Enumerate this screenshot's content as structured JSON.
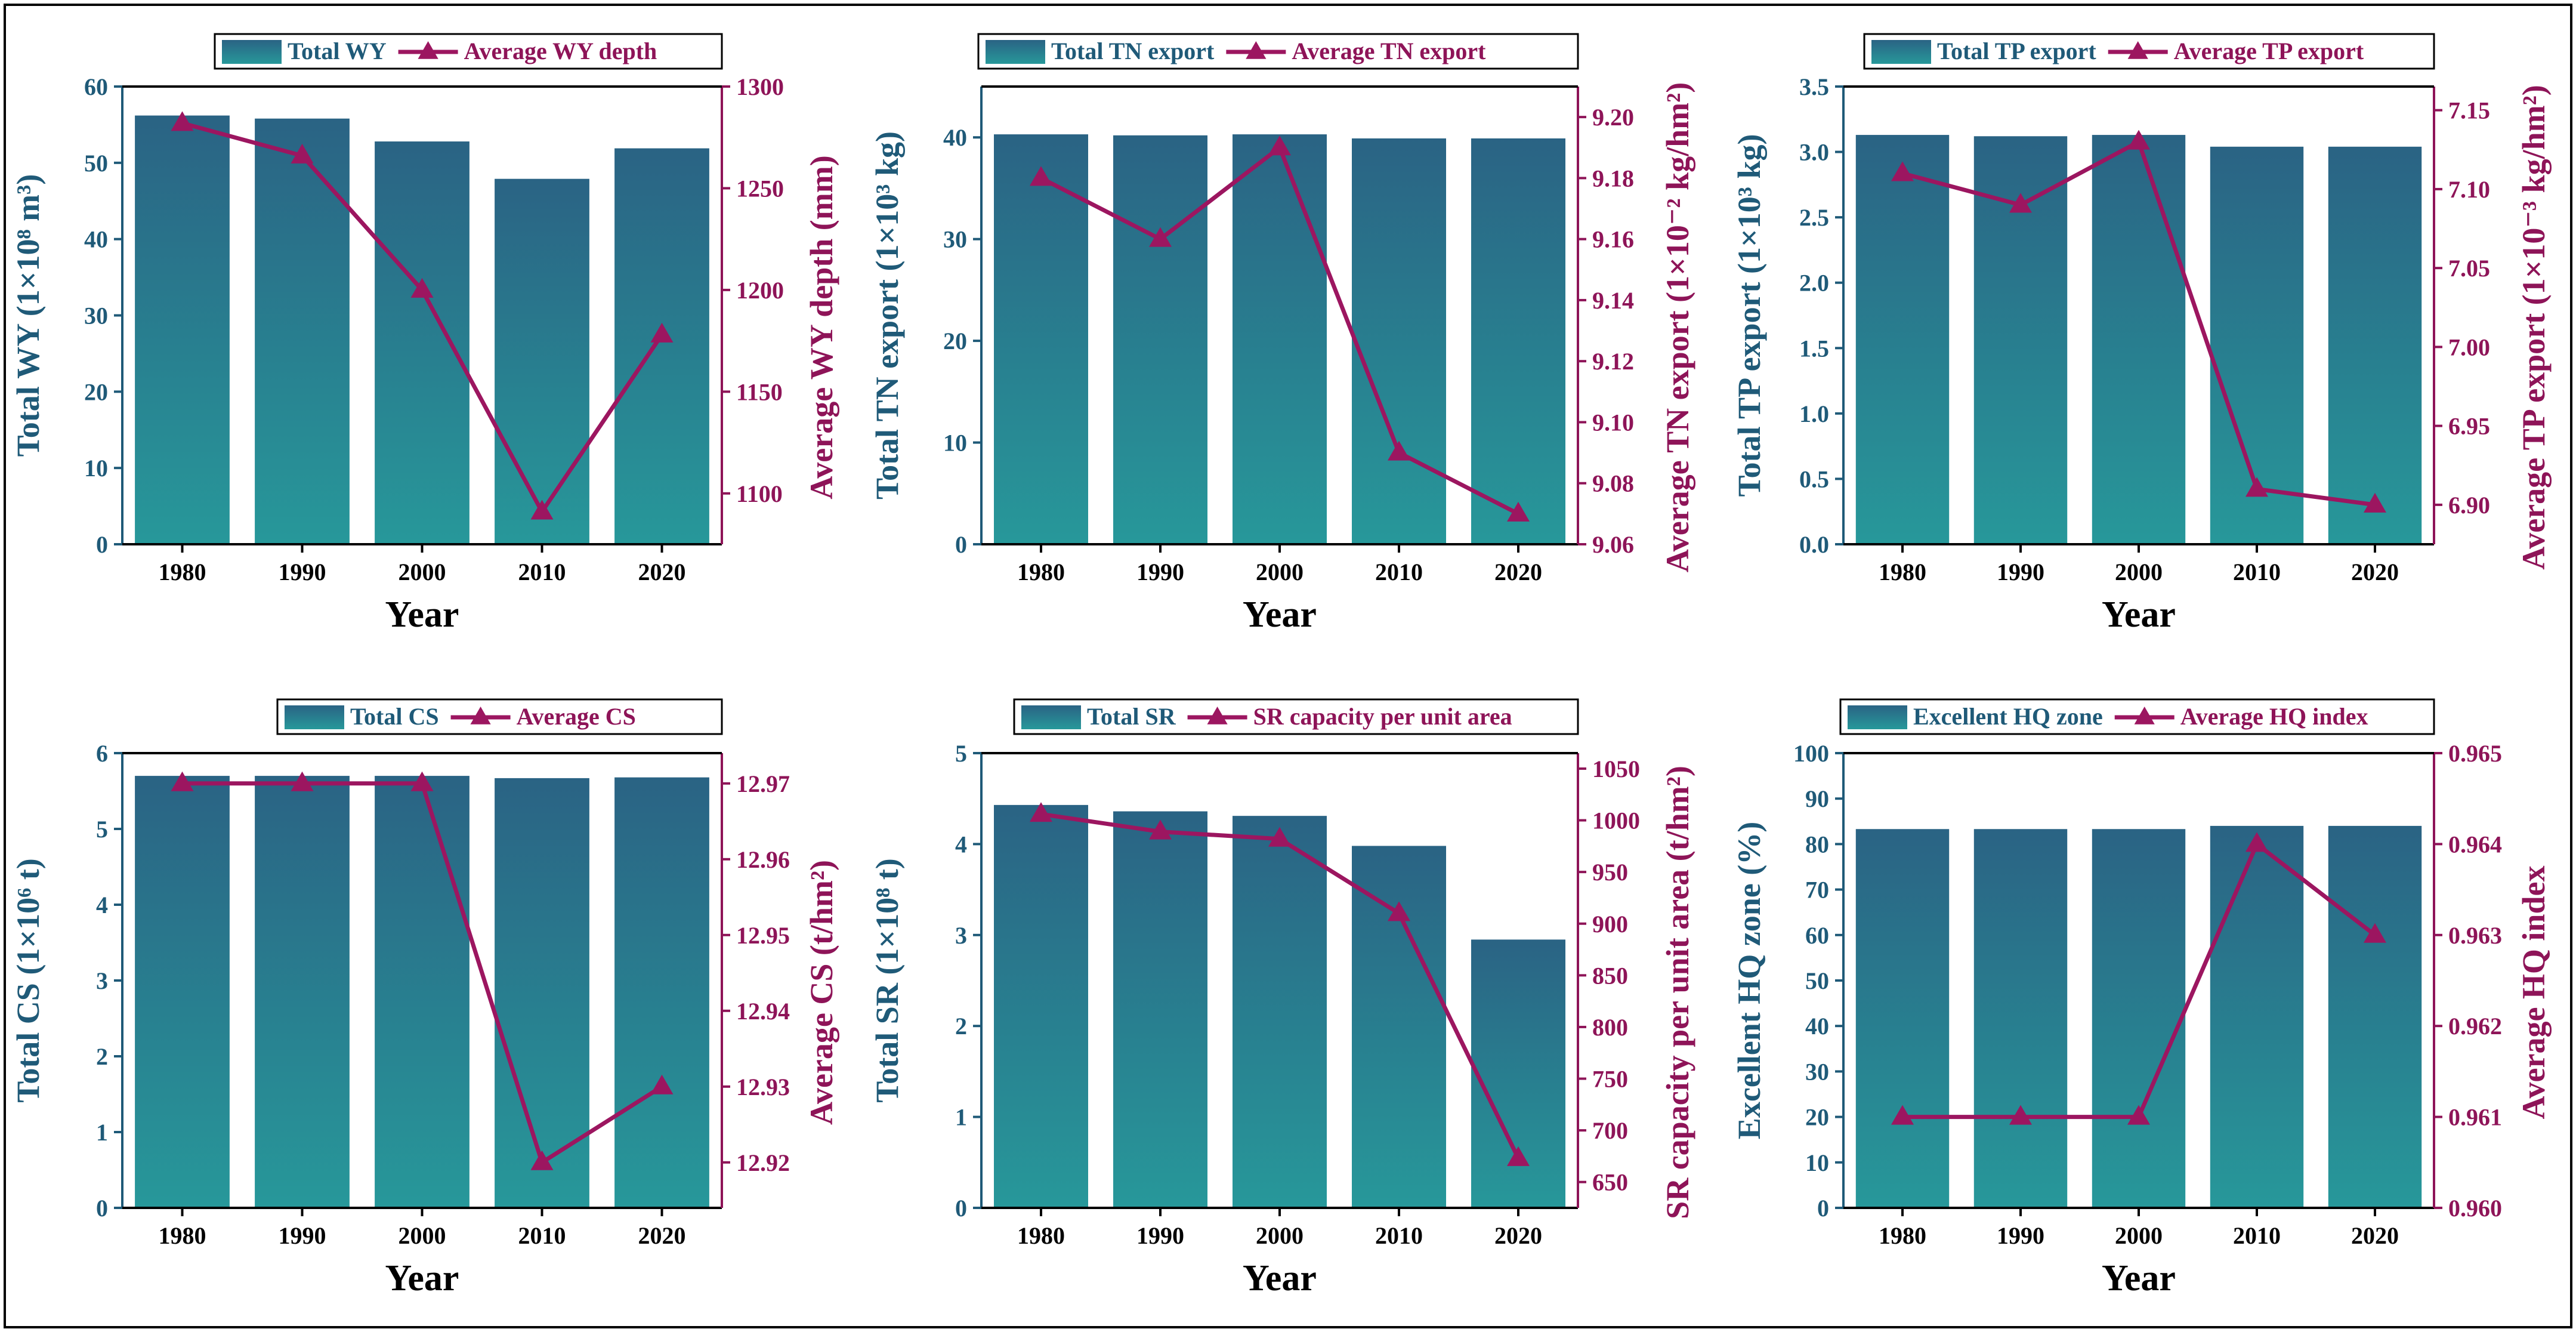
{
  "figure": {
    "frame_color": "#000000"
  },
  "colors": {
    "bar_top": "#2a6384",
    "bar_bottom": "#27989a",
    "left_axis": "#1f5a78",
    "right_axis": "#8e1458",
    "line": "#9c1660",
    "text": "#000000"
  },
  "chart_data": [
    {
      "type": "bar+line",
      "title": "",
      "categories": [
        "1980",
        "1990",
        "2000",
        "2010",
        "2020"
      ],
      "xlabel": "Year",
      "series": [
        {
          "name": "Total WY",
          "kind": "bar",
          "axis": "left",
          "values": [
            56.2,
            55.8,
            52.8,
            47.9,
            51.9
          ]
        },
        {
          "name": "Average WY depth",
          "kind": "line",
          "axis": "right",
          "values": [
            1282,
            1266,
            1200,
            1091,
            1178
          ]
        }
      ],
      "ylabel_left": "Total WY (1×10⁸ m³)",
      "ylim_left": [
        0,
        60
      ],
      "yticks_left": [
        "0",
        "10",
        "20",
        "30",
        "40",
        "50",
        "60"
      ],
      "ylabel_right": "Average WY depth (mm)",
      "ylim_right": [
        1075,
        1300
      ],
      "yticks_right": [
        "1100",
        "1150",
        "1200",
        "1250",
        "1300"
      ],
      "yticks_right_values": [
        1100,
        1150,
        1200,
        1250,
        1300
      ]
    },
    {
      "type": "bar+line",
      "title": "",
      "categories": [
        "1980",
        "1990",
        "2000",
        "2010",
        "2020"
      ],
      "xlabel": "Year",
      "series": [
        {
          "name": "Total TN export",
          "kind": "bar",
          "axis": "left",
          "values": [
            40.3,
            40.2,
            40.3,
            39.9,
            39.9
          ]
        },
        {
          "name": "Average TN export",
          "kind": "line",
          "axis": "right",
          "values": [
            9.18,
            9.16,
            9.19,
            9.09,
            9.07
          ]
        }
      ],
      "ylabel_left": "Total TN export (1×10³ kg)",
      "ylim_left": [
        0,
        45
      ],
      "yticks_left": [
        "0",
        "10",
        "20",
        "30",
        "40"
      ],
      "ylabel_right": "Average TN export (1×10⁻² kg/hm²)",
      "ylim_right": [
        9.06,
        9.21
      ],
      "yticks_right": [
        "9.06",
        "9.08",
        "9.10",
        "9.12",
        "9.14",
        "9.16",
        "9.18",
        "9.20"
      ],
      "yticks_right_values": [
        9.06,
        9.08,
        9.1,
        9.12,
        9.14,
        9.16,
        9.18,
        9.2
      ]
    },
    {
      "type": "bar+line",
      "title": "",
      "categories": [
        "1980",
        "1990",
        "2000",
        "2010",
        "2020"
      ],
      "xlabel": "Year",
      "series": [
        {
          "name": "Total TP export",
          "kind": "bar",
          "axis": "left",
          "values": [
            3.13,
            3.12,
            3.13,
            3.04,
            3.04
          ]
        },
        {
          "name": "Average TP export",
          "kind": "line",
          "axis": "right",
          "values": [
            7.11,
            7.09,
            7.13,
            6.91,
            6.9
          ]
        }
      ],
      "ylabel_left": "Total TP export (1×10³ kg)",
      "ylim_left": [
        0,
        3.5
      ],
      "yticks_left": [
        "0.0",
        "0.5",
        "1.0",
        "1.5",
        "2.0",
        "2.5",
        "3.0",
        "3.5"
      ],
      "ylabel_right": "Average TP export (1×10⁻³ kg/hm²)",
      "ylim_right": [
        6.875,
        7.165
      ],
      "yticks_right": [
        "6.90",
        "6.95",
        "7.00",
        "7.05",
        "7.10",
        "7.15"
      ],
      "yticks_right_values": [
        6.9,
        6.95,
        7.0,
        7.05,
        7.1,
        7.15
      ]
    },
    {
      "type": "bar+line",
      "title": "",
      "categories": [
        "1980",
        "1990",
        "2000",
        "2010",
        "2020"
      ],
      "xlabel": "Year",
      "series": [
        {
          "name": "Total CS",
          "kind": "bar",
          "axis": "left",
          "values": [
            5.7,
            5.7,
            5.7,
            5.67,
            5.68
          ]
        },
        {
          "name": "Average CS",
          "kind": "line",
          "axis": "right",
          "values": [
            12.97,
            12.97,
            12.97,
            12.92,
            12.93
          ]
        }
      ],
      "ylabel_left": "Total CS (1×10⁶ t)",
      "ylim_left": [
        0,
        6
      ],
      "yticks_left": [
        "0",
        "1",
        "2",
        "3",
        "4",
        "5",
        "6"
      ],
      "ylabel_right": "Average CS (t/hm²)",
      "ylim_right": [
        12.914,
        12.974
      ],
      "yticks_right": [
        "12.92",
        "12.93",
        "12.94",
        "12.95",
        "12.96",
        "12.97"
      ],
      "yticks_right_values": [
        12.92,
        12.93,
        12.94,
        12.95,
        12.96,
        12.97
      ]
    },
    {
      "type": "bar+line",
      "title": "",
      "categories": [
        "1980",
        "1990",
        "2000",
        "2010",
        "2020"
      ],
      "xlabel": "Year",
      "series": [
        {
          "name": "Total SR",
          "kind": "bar",
          "axis": "left",
          "values": [
            4.43,
            4.36,
            4.31,
            3.98,
            2.95
          ]
        },
        {
          "name": "SR capacity per unit area",
          "kind": "line",
          "axis": "right",
          "values": [
            1006,
            989,
            982,
            910,
            673
          ]
        }
      ],
      "ylabel_left": "Total SR (1×10⁸ t)",
      "ylim_left": [
        0,
        5
      ],
      "yticks_left": [
        "0",
        "1",
        "2",
        "3",
        "4",
        "5"
      ],
      "ylabel_right": "SR capacity per unit area (t/hm²)",
      "ylim_right": [
        625,
        1065
      ],
      "yticks_right": [
        "650",
        "700",
        "750",
        "800",
        "850",
        "900",
        "950",
        "1000",
        "1050"
      ],
      "yticks_right_values": [
        650,
        700,
        750,
        800,
        850,
        900,
        950,
        1000,
        1050
      ]
    },
    {
      "type": "bar+line",
      "title": "",
      "categories": [
        "1980",
        "1990",
        "2000",
        "2010",
        "2020"
      ],
      "xlabel": "Year",
      "series": [
        {
          "name": "Excellent HQ zone",
          "kind": "bar",
          "axis": "left",
          "values": [
            83.3,
            83.3,
            83.3,
            84.0,
            84.0
          ]
        },
        {
          "name": "Average HQ index",
          "kind": "line",
          "axis": "right",
          "values": [
            0.961,
            0.961,
            0.961,
            0.964,
            0.963
          ]
        }
      ],
      "ylabel_left": "Excellent HQ zone (%)",
      "ylim_left": [
        0,
        100
      ],
      "yticks_left": [
        "0",
        "10",
        "20",
        "30",
        "40",
        "50",
        "60",
        "70",
        "80",
        "90",
        "100"
      ],
      "ylabel_right": "Average HQ index",
      "ylim_right": [
        0.96,
        0.965
      ],
      "yticks_right": [
        "0.960",
        "0.961",
        "0.962",
        "0.963",
        "0.964",
        "0.965"
      ],
      "yticks_right_values": [
        0.96,
        0.961,
        0.962,
        0.963,
        0.964,
        0.965
      ]
    }
  ]
}
